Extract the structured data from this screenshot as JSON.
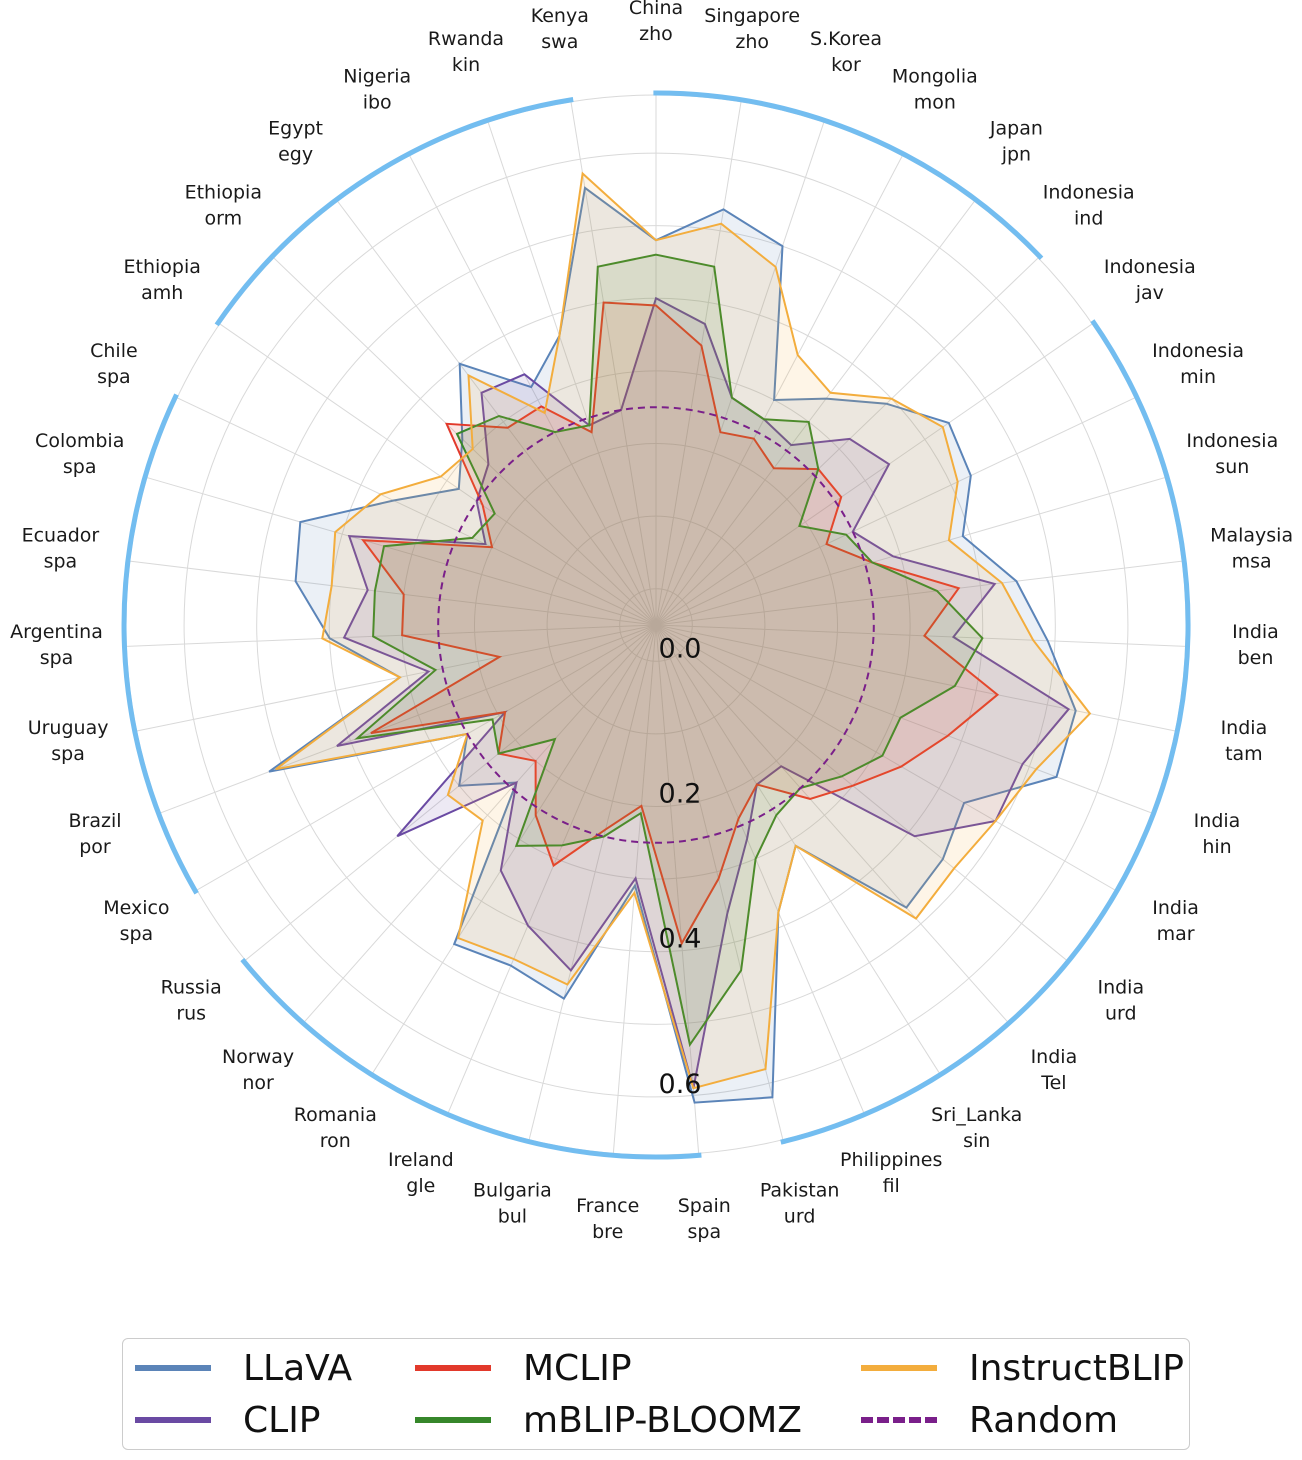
{
  "chart_data": {
    "type": "radar",
    "title": "",
    "r_range": [
      -0.05,
      0.68
    ],
    "r_ticks": [
      "0.0",
      "0.2",
      "0.4",
      "0.6"
    ],
    "r_tick_values": [
      0.0,
      0.2,
      0.4,
      0.6
    ],
    "grid": true,
    "legend_placement": "bottom",
    "categories": [
      [
        "China",
        "zho"
      ],
      [
        "Singapore",
        "zho"
      ],
      [
        "S.Korea",
        "kor"
      ],
      [
        "Mongolia",
        "mon"
      ],
      [
        "Japan",
        "jpn"
      ],
      [
        "Indonesia",
        "ind"
      ],
      [
        "Indonesia",
        "jav"
      ],
      [
        "Indonesia",
        "min"
      ],
      [
        "Indonesia",
        "sun"
      ],
      [
        "Malaysia",
        "msa"
      ],
      [
        "India",
        "ben"
      ],
      [
        "India",
        "tam"
      ],
      [
        "India",
        "hin"
      ],
      [
        "India",
        "mar"
      ],
      [
        "India",
        "urd"
      ],
      [
        "India",
        "Tel"
      ],
      [
        "Sri_Lanka",
        "sin"
      ],
      [
        "Philippines",
        "fil"
      ],
      [
        "Pakistan",
        "urd"
      ],
      [
        "Spain",
        "spa"
      ],
      [
        "France",
        "bre"
      ],
      [
        "Bulgaria",
        "bul"
      ],
      [
        "Ireland",
        "gle"
      ],
      [
        "Romania",
        "ron"
      ],
      [
        "Norway",
        "nor"
      ],
      [
        "Russia",
        "rus"
      ],
      [
        "Mexico",
        "spa"
      ],
      [
        "Brazil",
        "por"
      ],
      [
        "Uruguay",
        "spa"
      ],
      [
        "Argentina",
        "spa"
      ],
      [
        "Ecuador",
        "spa"
      ],
      [
        "Colombia",
        "spa"
      ],
      [
        "Chile",
        "spa"
      ],
      [
        "Ethiopia",
        "amh"
      ],
      [
        "Ethiopia",
        "orm"
      ],
      [
        "Egypt",
        "egy"
      ],
      [
        "Nigeria",
        "ibo"
      ],
      [
        "Rwanda",
        "kin"
      ],
      [
        "Kenya",
        "swa"
      ]
    ],
    "series": [
      {
        "name": "LLaVA",
        "color": "#5b84b8",
        "fill": true,
        "dashed": false,
        "values": [
          0.48,
          0.53,
          0.5,
          0.3,
          0.34,
          0.39,
          0.44,
          0.43,
          0.39,
          0.45,
          0.49,
          0.54,
          0.54,
          0.44,
          0.46,
          0.47,
          0.31,
          0.38,
          0.62,
          0.61,
          0.31,
          0.48,
          0.46,
          0.47,
          0.24,
          0.3,
          0.25,
          0.52,
          0.31,
          0.4,
          0.45,
          0.46,
          0.35,
          0.28,
          0.32,
          0.4,
          0.32,
          0.37,
          0.56
        ]
      },
      {
        "name": "CLIP",
        "color": "#6a4aa3",
        "fill": true,
        "dashed": false,
        "values": [
          0.4,
          0.37,
          0.28,
          0.27,
          0.26,
          0.32,
          0.34,
          0.25,
          0.29,
          0.42,
          0.36,
          0.53,
          0.49,
          0.49,
          0.41,
          0.21,
          0.21,
          0.27,
          0.36,
          0.59,
          0.3,
          0.44,
          0.4,
          0.35,
          0.24,
          0.41,
          0.19,
          0.42,
          0.27,
          0.38,
          0.35,
          0.39,
          0.21,
          0.25,
          0.27,
          0.35,
          0.34,
          0.24,
          0.25
        ]
      },
      {
        "name": "MCLIP",
        "color": "#e2392b",
        "fill": true,
        "dashed": false,
        "values": [
          0.39,
          0.34,
          0.23,
          0.24,
          0.22,
          0.26,
          0.26,
          0.21,
          0.26,
          0.37,
          0.32,
          0.43,
          0.38,
          0.34,
          0.3,
          0.27,
          0.21,
          0.24,
          0.31,
          0.39,
          0.2,
          0.24,
          0.31,
          0.26,
          0.2,
          0.23,
          0.19,
          0.37,
          0.17,
          0.3,
          0.3,
          0.37,
          0.2,
          0.24,
          0.35,
          0.29,
          0.29,
          0.23,
          0.4
        ]
      },
      {
        "name": "mBLIP-BLOOMZ",
        "color": "#36872a",
        "fill": true,
        "dashed": false,
        "values": [
          0.46,
          0.45,
          0.28,
          0.27,
          0.3,
          0.26,
          0.19,
          0.24,
          0.26,
          0.34,
          0.4,
          0.37,
          0.31,
          0.31,
          0.28,
          0.25,
          0.26,
          0.3,
          0.44,
          0.53,
          0.21,
          0.25,
          0.28,
          0.31,
          0.16,
          0.23,
          0.21,
          0.39,
          0.26,
          0.34,
          0.34,
          0.34,
          0.23,
          0.22,
          0.33,
          0.31,
          0.25,
          0.24,
          0.45
        ]
      },
      {
        "name": "InstructBLIP",
        "color": "#f3ad3d",
        "fill": true,
        "dashed": false,
        "values": [
          0.48,
          0.51,
          0.47,
          0.37,
          0.35,
          0.4,
          0.43,
          0.41,
          0.37,
          0.43,
          0.47,
          0.56,
          0.51,
          0.49,
          0.48,
          0.49,
          0.31,
          0.38,
          0.58,
          0.59,
          0.32,
          0.46,
          0.45,
          0.46,
          0.31,
          0.32,
          0.25,
          0.51,
          0.31,
          0.41,
          0.4,
          0.41,
          0.37,
          0.31,
          0.3,
          0.38,
          0.28,
          0.37,
          0.58
        ]
      },
      {
        "name": "Random",
        "color": "#7a1f8a",
        "fill": false,
        "dashed": true,
        "values": [
          0.25,
          0.25,
          0.25,
          0.25,
          0.25,
          0.25,
          0.25,
          0.25,
          0.25,
          0.25,
          0.25,
          0.25,
          0.25,
          0.25,
          0.25,
          0.25,
          0.25,
          0.25,
          0.25,
          0.25,
          0.25,
          0.25,
          0.25,
          0.25,
          0.25,
          0.25,
          0.25,
          0.25,
          0.25,
          0.25,
          0.25,
          0.25,
          0.25,
          0.25,
          0.25,
          0.25,
          0.25,
          0.25,
          0.25
        ]
      }
    ]
  },
  "legend": {
    "items": [
      {
        "label": "LLaVA",
        "color": "#5b84b8",
        "dashed": false
      },
      {
        "label": "CLIP",
        "color": "#6a4aa3",
        "dashed": false
      },
      {
        "label": "MCLIP",
        "color": "#e2392b",
        "dashed": false
      },
      {
        "label": "mBLIP-BLOOMZ",
        "color": "#36872a",
        "dashed": false
      },
      {
        "label": "InstructBLIP",
        "color": "#f3ad3d",
        "dashed": false
      },
      {
        "label": "Random",
        "color": "#7a1f8a",
        "dashed": true
      }
    ]
  },
  "highlight_arcs": {
    "color": "#73bdf0",
    "spans": [
      {
        "from": "China zho",
        "to": "Indonesia ind"
      },
      {
        "from": "Indonesia jav",
        "to": "Pakistan urd"
      },
      {
        "from": "Spain spa",
        "to": "Russia rus"
      },
      {
        "from": "Mexico spa",
        "to": "Chile spa"
      },
      {
        "from": "Ethiopia amh",
        "to": "Kenya swa"
      }
    ]
  }
}
